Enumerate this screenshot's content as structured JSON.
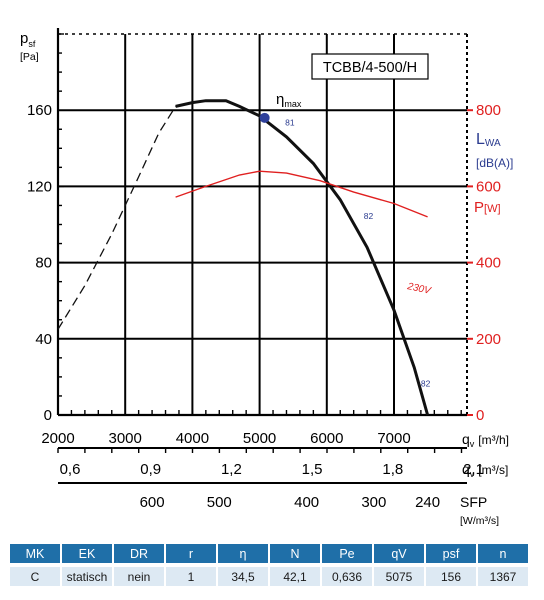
{
  "chart_data": {
    "type": "line",
    "model_label": "TCBB/4-500/H",
    "y_axis": {
      "label_main": "p",
      "label_sub": "sf",
      "unit": "[Pa]",
      "ticks": [
        0,
        40,
        80,
        120,
        160
      ],
      "range": [
        0,
        200
      ]
    },
    "x_axis": {
      "ticks": [
        2000,
        3000,
        4000,
        5000,
        6000,
        7000
      ],
      "label_main": "q",
      "label_sub": "v",
      "unit": "[m³/h]",
      "range": [
        2000,
        8000
      ]
    },
    "x_axis_m3s": {
      "ticks": [
        "0,6",
        "0,9",
        "1,2",
        "1,5",
        "1,8",
        "2,1"
      ],
      "label_main": "q",
      "label_sub": "v",
      "unit": "[m³/s]"
    },
    "sfp_axis": {
      "ticks": [
        600,
        500,
        400,
        300,
        240
      ],
      "tick_positions_qv": [
        3400,
        4400,
        5700,
        6700,
        7500
      ],
      "label": "SFP",
      "unit": "[W/m³/s]"
    },
    "power_axis": {
      "label": "P",
      "unit": "[W]",
      "ticks": [
        0,
        200,
        400,
        600,
        800
      ],
      "range": [
        0,
        1000
      ]
    },
    "lwa_axis": {
      "label_main": "L",
      "label_sub": "WA",
      "unit": "[dB(A)]"
    },
    "pressure_curve_operating": {
      "x": [
        3750,
        4000,
        4200,
        4500,
        4700,
        5000,
        5400,
        5800,
        6200,
        6600,
        7000,
        7300,
        7500
      ],
      "y": [
        162,
        164,
        165,
        165,
        162,
        157,
        146,
        132,
        113,
        88,
        55,
        25,
        0
      ]
    },
    "pressure_curve_dashed": {
      "x": [
        2000,
        2400,
        2800,
        3200,
        3500,
        3750
      ],
      "y": [
        45,
        68,
        95,
        125,
        148,
        162
      ]
    },
    "power_curve": {
      "name": "230V",
      "x": [
        3750,
        4200,
        4700,
        5000,
        5400,
        5900,
        6400,
        7000,
        7500
      ],
      "y": [
        572,
        600,
        630,
        640,
        635,
        615,
        585,
        555,
        520
      ]
    },
    "efficiency_point": {
      "x": 5075,
      "y": 156,
      "label_main": "η",
      "label_sub": "max"
    },
    "lwa_labels": [
      {
        "text": "81",
        "x": 5380,
        "y": 152
      },
      {
        "text": "82",
        "x": 6550,
        "y": 103
      },
      {
        "text": "82",
        "x": 7400,
        "y": 15
      }
    ],
    "colors": {
      "pressure": "#111111",
      "power": "#e02020",
      "lwa": "#2a3b8f",
      "point": "#2e3f9a",
      "grid": "#000000"
    }
  },
  "table": {
    "headers": [
      "MK",
      "EK",
      "DR",
      "r",
      "η",
      "N",
      "Pe",
      "qV",
      "psf",
      "n"
    ],
    "values": [
      "C",
      "statisch",
      "nein",
      "1",
      "34,5",
      "42,1",
      "0,636",
      "5075",
      "156",
      "1367"
    ]
  }
}
